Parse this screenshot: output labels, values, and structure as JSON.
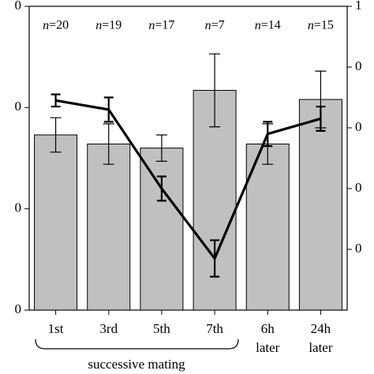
{
  "chart_data": {
    "type": "bar",
    "categories": [
      "1st",
      "3rd",
      "5th",
      "7th",
      "6h later",
      "24h later"
    ],
    "series": [
      {
        "type": "bar",
        "color": "#c0c0c0",
        "values": [
          17.3,
          16.4,
          16.0,
          21.7,
          16.4,
          20.8
        ],
        "errors": [
          1.7,
          2.0,
          1.3,
          3.6,
          2.0,
          2.8
        ]
      },
      {
        "type": "line",
        "axis": "y2",
        "color": "#000000",
        "values": [
          0.69,
          0.66,
          0.4,
          0.17,
          0.58,
          0.63
        ],
        "errors": [
          0.02,
          0.04,
          0.04,
          0.06,
          0.04,
          0.04
        ]
      }
    ],
    "annotations": [
      "n=20",
      "n=19",
      "n=17",
      "n=7",
      "n=14",
      "n=15"
    ],
    "group_label": "successive mating",
    "ylim": [
      0,
      30
    ],
    "yticks": [
      0,
      {
        "value": 10,
        "label": "0"
      },
      {
        "value": 20,
        "label": "0"
      },
      {
        "value": 30,
        "label": "0"
      }
    ],
    "y2lim": [
      0,
      1
    ],
    "y2ticks": [
      {
        "value": 0.2,
        "label": "0"
      },
      {
        "value": 0.4,
        "label": "0"
      },
      {
        "value": 0.6,
        "label": "0"
      },
      {
        "value": 0.8,
        "label": "0"
      },
      {
        "value": 1,
        "label": "1"
      }
    ]
  }
}
